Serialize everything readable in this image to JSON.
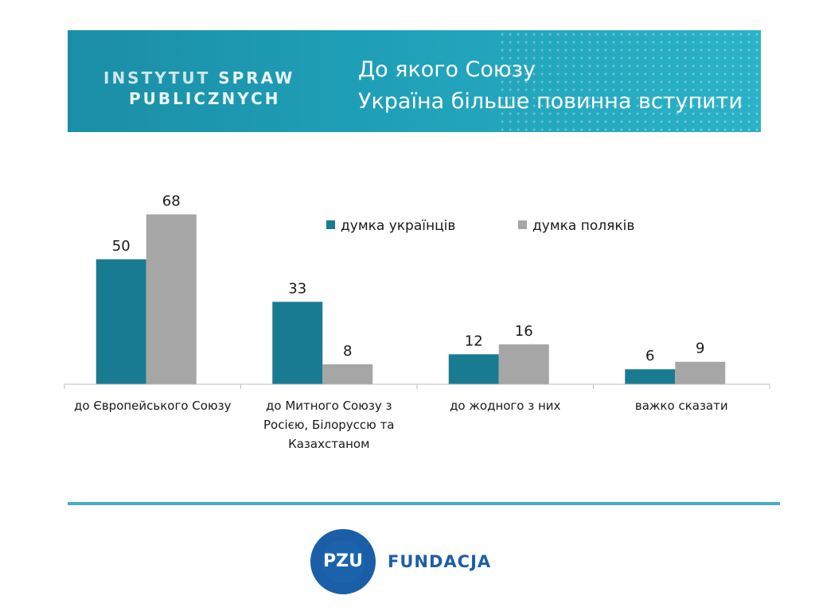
{
  "header": {
    "brand_line1_part1": "INSTYTUT",
    "brand_line1_part2": "SPRAW",
    "brand_line2": "PUBLICZNYCH",
    "title_line1": "До якого Союзу",
    "title_line2": "Україна більше повинна вступити"
  },
  "footer": {
    "logo_text": "PZU",
    "org_name": "FUNDACJA"
  },
  "colors": {
    "series_ukr": "#197b91",
    "series_pl": "#a6a6a6",
    "banner": "#1fa0b8",
    "rule": "#4aaad1"
  },
  "chart_data": {
    "type": "bar",
    "categories": [
      [
        "до Європейського Союзу"
      ],
      [
        "до Митного Союзу з",
        "Росією, Білоруссю та",
        "Казахстаном"
      ],
      [
        "до жодного з них"
      ],
      [
        "важко сказати"
      ]
    ],
    "series": [
      {
        "name": "думка українців",
        "values": [
          50,
          33,
          12,
          6
        ]
      },
      {
        "name": "думка поляків",
        "values": [
          68,
          8,
          16,
          9
        ]
      }
    ],
    "ylim": [
      0,
      70
    ],
    "grid": false,
    "legend": "top-center",
    "data_labels": true
  }
}
